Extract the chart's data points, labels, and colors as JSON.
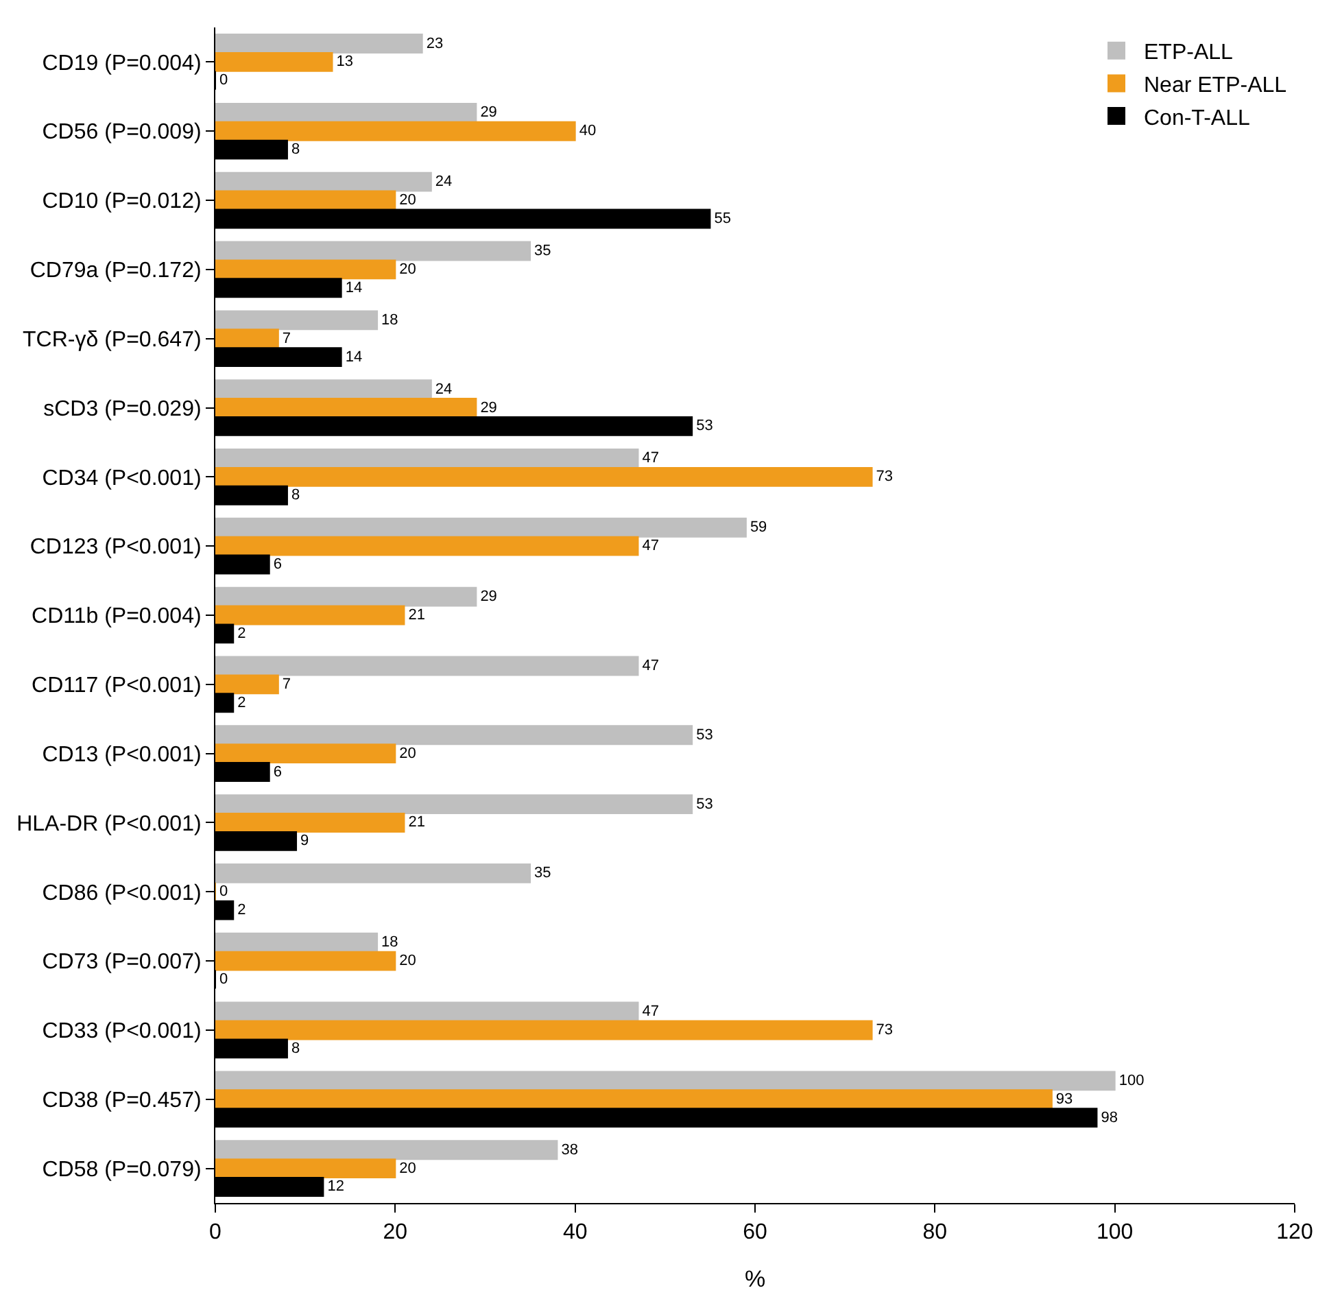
{
  "chart_data": {
    "type": "bar",
    "orientation": "horizontal",
    "xlabel": "%",
    "categories": [
      "CD19 (P=0.004)",
      "CD56 (P=0.009)",
      "CD10 (P=0.012)",
      "CD79a (P=0.172)",
      "TCR-γδ (P=0.647)",
      "sCD3 (P=0.029)",
      "CD34 (P<0.001)",
      "CD123 (P<0.001)",
      "CD11b (P=0.004)",
      "CD117 (P<0.001)",
      "CD13 (P<0.001)",
      "HLA-DR (P<0.001)",
      "CD86 (P<0.001)",
      "CD73 (P=0.007)",
      "CD33 (P<0.001)",
      "CD38 (P=0.457)",
      "CD58 (P=0.079)"
    ],
    "series": [
      {
        "name": "ETP-ALL",
        "color": "#bfbfbf",
        "values": [
          23,
          29,
          24,
          35,
          18,
          24,
          47,
          59,
          29,
          47,
          53,
          53,
          35,
          18,
          47,
          100,
          38
        ]
      },
      {
        "name": "Near ETP-ALL",
        "color": "#f09c1c",
        "values": [
          13,
          40,
          20,
          20,
          7,
          29,
          73,
          47,
          21,
          7,
          20,
          21,
          0,
          20,
          73,
          93,
          20
        ]
      },
      {
        "name": "Con-T-ALL",
        "color": "#000000",
        "values": [
          0,
          8,
          55,
          14,
          14,
          53,
          8,
          6,
          2,
          2,
          6,
          9,
          2,
          0,
          8,
          98,
          12
        ]
      }
    ],
    "xlim": [
      0,
      120
    ],
    "xticks": [
      0,
      20,
      40,
      60,
      80,
      100,
      120
    ],
    "data_labels": true,
    "grid": false,
    "legend": "top right"
  }
}
